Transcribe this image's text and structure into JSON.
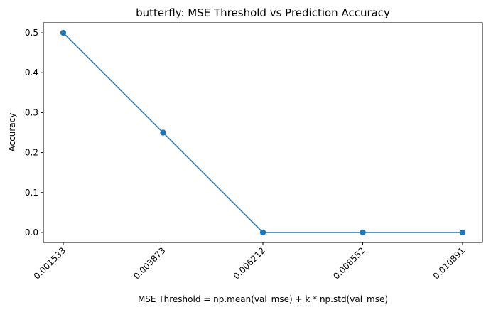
{
  "chart_data": {
    "type": "line",
    "title": "butterfly: MSE Threshold vs Prediction Accuracy",
    "xlabel": "MSE Threshold = np.mean(val_mse) + k * np.std(val_mse)",
    "ylabel": "Accuracy",
    "categories": [
      "0.001533",
      "0.003873",
      "0.006212",
      "0.008552",
      "0.010891"
    ],
    "x": [
      0.001533,
      0.003873,
      0.006212,
      0.008552,
      0.010891
    ],
    "series": [
      {
        "values": [
          0.5,
          0.25,
          0.0,
          0.0,
          0.0
        ],
        "color": "#1f77b4",
        "marker": "circle"
      }
    ],
    "ylim": [
      -0.025,
      0.525
    ],
    "yticks": [
      0.0,
      0.1,
      0.2,
      0.3,
      0.4,
      0.5
    ],
    "ytick_labels": [
      "0.0",
      "0.1",
      "0.2",
      "0.3",
      "0.4",
      "0.5"
    ],
    "xtick_rotation": 45,
    "grid": false,
    "legend": "none"
  }
}
